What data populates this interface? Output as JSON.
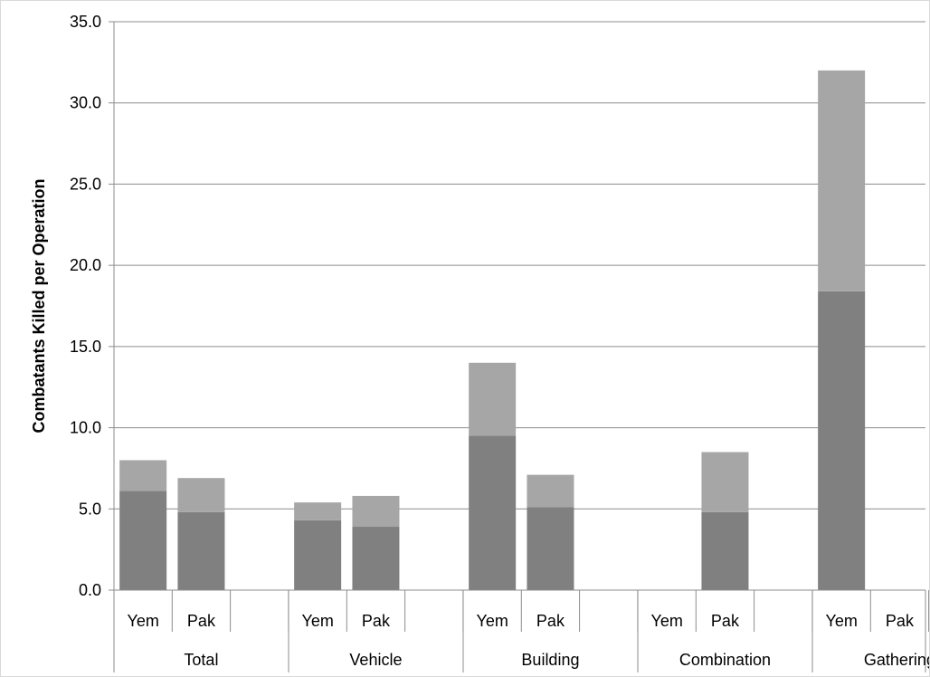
{
  "chart_data": {
    "type": "bar",
    "stacked": true,
    "ylabel": "Combatants Killed per Operation",
    "ylim": [
      0,
      35
    ],
    "yticks": [
      "0.0",
      "5.0",
      "10.0",
      "15.0",
      "20.0",
      "25.0",
      "30.0",
      "35.0"
    ],
    "grid": true,
    "groups": [
      "Total",
      "Vehicle",
      "Building",
      "Combination",
      "Gathering"
    ],
    "subcategories": [
      "Yem",
      "Pak"
    ],
    "series": [
      {
        "color": "#808080",
        "values": [
          [
            6.1,
            4.8
          ],
          [
            4.3,
            3.9
          ],
          [
            9.5,
            5.1
          ],
          [
            null,
            4.8
          ],
          [
            18.4,
            null
          ]
        ]
      },
      {
        "color": "#a6a6a6",
        "values": [
          [
            1.9,
            2.1
          ],
          [
            1.1,
            1.9
          ],
          [
            4.5,
            2.0
          ],
          [
            null,
            3.7
          ],
          [
            13.6,
            null
          ]
        ]
      }
    ]
  }
}
